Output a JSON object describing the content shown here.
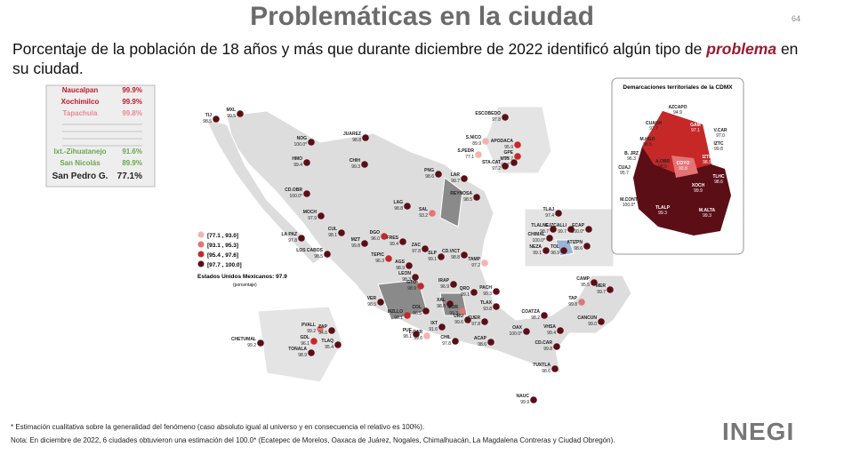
{
  "header": {
    "title": "Problemáticas en la ciudad",
    "page": "64",
    "subtitle_a": "Porcentaje de la población de 18 años y más que durante diciembre de 2022 identificó algún tipo de",
    "subtitle_b": "problema",
    "subtitle_c": "en su ciudad."
  },
  "ranking": [
    {
      "name": "Naucalpan",
      "value": "99.9%"
    },
    {
      "name": "Xochimilco",
      "value": "99.9%"
    },
    {
      "name": "Tapachula",
      "value": "99.8%"
    },
    {
      "name": "Ixt.-Zihuatanejo",
      "value": "91.6%"
    },
    {
      "name": "San Nicolás",
      "value": "89.9%"
    },
    {
      "name": "San Pedro G.",
      "value": "77.1%"
    }
  ],
  "legend": {
    "items": [
      "[77.1 , 93.0]",
      "[93.1 , 95.3]",
      "[95.4 , 97.6]",
      "[97.7 , 100.0]"
    ],
    "national": "Estados Unidos Mexicanos: 97.9",
    "unit": "(porcentaje)"
  },
  "cities": [
    {
      "name": "TIJ",
      "value": "98.5"
    },
    {
      "name": "MXL",
      "value": "99.5"
    },
    {
      "name": "NOG",
      "value": "100.0*"
    },
    {
      "name": "JUAREZ",
      "value": "98.8"
    },
    {
      "name": "HMO",
      "value": "99.4"
    },
    {
      "name": "CHIH",
      "value": "99.3"
    },
    {
      "name": "CD.OBR",
      "value": "100.0*"
    },
    {
      "name": "MOCH",
      "value": "97.9"
    },
    {
      "name": "LA PAZ",
      "value": "97.8"
    },
    {
      "name": "CUL",
      "value": "98.1"
    },
    {
      "name": "LOS CABOS",
      "value": "98.5"
    },
    {
      "name": "MZT",
      "value": "99.8"
    },
    {
      "name": "DGO",
      "value": "96.0"
    },
    {
      "name": "LAG",
      "value": "98.8"
    },
    {
      "name": "SAL",
      "value": "93.2"
    },
    {
      "name": "PNG",
      "value": "98.6"
    },
    {
      "name": "LAR",
      "value": "99.7"
    },
    {
      "name": "REYNOSA",
      "value": "98.5"
    },
    {
      "name": "ESCOBEDO",
      "value": "97.8"
    },
    {
      "name": "S.NICO",
      "value": "89.9"
    },
    {
      "name": "APODACA",
      "value": "95.9"
    },
    {
      "name": "GPE",
      "value": "95.7"
    },
    {
      "name": "S.PEDR",
      "value": "77.1"
    },
    {
      "name": "MTY",
      "value": "97.7"
    },
    {
      "name": "STA.CAT",
      "value": "97.2"
    },
    {
      "name": "FRES",
      "value": "99.4"
    },
    {
      "name": "ZAC",
      "value": "97.8"
    },
    {
      "name": "TEPIC",
      "value": "96.3"
    },
    {
      "name": "AGS",
      "value": "98.9"
    },
    {
      "name": "SLP",
      "value": "99.1"
    },
    {
      "name": "CD.VICT",
      "value": "98.8"
    },
    {
      "name": "TAMP",
      "value": "97.2"
    },
    {
      "name": "LEON",
      "value": "98.3"
    },
    {
      "name": "GTO",
      "value": "98.9"
    },
    {
      "name": "IRAP",
      "value": "96.9"
    },
    {
      "name": "QRO",
      "value": "99.1"
    },
    {
      "name": "PACH",
      "value": "99.3"
    },
    {
      "name": "XAL",
      "value": "98.8"
    },
    {
      "name": "MOR",
      "value": "99.3"
    },
    {
      "name": "TLAX",
      "value": "93.8"
    },
    {
      "name": "VER",
      "value": "98.5"
    },
    {
      "name": "MZLLO",
      "value": "98.1"
    },
    {
      "name": "COL",
      "value": "96.5"
    },
    {
      "name": "URU",
      "value": "99.6"
    },
    {
      "name": "CUER",
      "value": "97.8"
    },
    {
      "name": "PUE",
      "value": "98.1"
    },
    {
      "name": "L.CAR",
      "value": "99.0"
    },
    {
      "name": "IXT",
      "value": "91.6"
    },
    {
      "name": "CHIL",
      "value": "97.8"
    },
    {
      "name": "ACAP",
      "value": "98.6"
    },
    {
      "name": "OAX",
      "value": "100.0*"
    },
    {
      "name": "COATZA",
      "value": "98.2"
    },
    {
      "name": "VHSA",
      "value": "99.4"
    },
    {
      "name": "CD.CAR",
      "value": "99.8"
    },
    {
      "name": "TUXTLA",
      "value": "98.6"
    },
    {
      "name": "TAP",
      "value": "99.8"
    },
    {
      "name": "CAMP",
      "value": "95.5"
    },
    {
      "name": "MER",
      "value": "99.7"
    },
    {
      "name": "CANCUN",
      "value": "99.0"
    },
    {
      "name": "CHETUMAL",
      "value": "99.2"
    },
    {
      "name": "PVALL",
      "value": "99.2"
    },
    {
      "name": "ZAP",
      "value": "94.6"
    },
    {
      "name": "GDL",
      "value": "96.1"
    },
    {
      "name": "TLAQ",
      "value": "95.4"
    },
    {
      "name": "TONALA",
      "value": "98.9"
    },
    {
      "name": "TLAJ",
      "value": "97.4"
    },
    {
      "name": "TLALNE",
      "value": "98.7"
    },
    {
      "name": "C.IZCALLI",
      "value": "99.7"
    },
    {
      "name": "ECAP",
      "value": "100.0*"
    },
    {
      "name": "CHIMAL",
      "value": "100.0*"
    },
    {
      "name": "ATIZPN",
      "value": "98.6"
    },
    {
      "name": "NEZA",
      "value": "99.1"
    },
    {
      "name": "TOL",
      "value": "98.9"
    },
    {
      "name": "NAUC",
      "value": "99.9"
    }
  ],
  "cdmx": {
    "title": "Demarcaciones territoriales de la CDMX",
    "items": [
      {
        "name": "AZCAPO",
        "value": "94.9"
      },
      {
        "name": "CUAUH",
        "value": "97.7"
      },
      {
        "name": "GAM",
        "value": "97.1"
      },
      {
        "name": "V.CAR",
        "value": "97.0"
      },
      {
        "name": "M.HGO",
        "value": "96.5"
      },
      {
        "name": "IZTC",
        "value": "99.8"
      },
      {
        "name": "B. JRZ",
        "value": "96.3"
      },
      {
        "name": "A.OBR",
        "value": "98.0"
      },
      {
        "name": "COYO",
        "value": "93.8"
      },
      {
        "name": "IZTP",
        "value": "98.9"
      },
      {
        "name": "CUAJ",
        "value": "95.7"
      },
      {
        "name": "XOCH",
        "value": "99.9"
      },
      {
        "name": "TLHC",
        "value": "98.6"
      },
      {
        "name": "M.CONT",
        "value": "100.0*"
      },
      {
        "name": "TLALP",
        "value": "99.3"
      },
      {
        "name": "M.ALTA",
        "value": "99.3"
      }
    ]
  },
  "footer": {
    "note1": "* Estimación cualitativa sobre la generalidad del fenómeno (caso absoluto igual al universo y en consecuencia el relativo es 100%).",
    "note2": "Nota: En diciembre de 2022, 6 ciudades obtuvieron una estimación del 100.0* (Ecatepec de Morelos, Oaxaca de Juárez, Nogales, Chimalhuacán, La Magdalena Contreras y Ciudad Obregón).",
    "logo": "INEGI"
  }
}
